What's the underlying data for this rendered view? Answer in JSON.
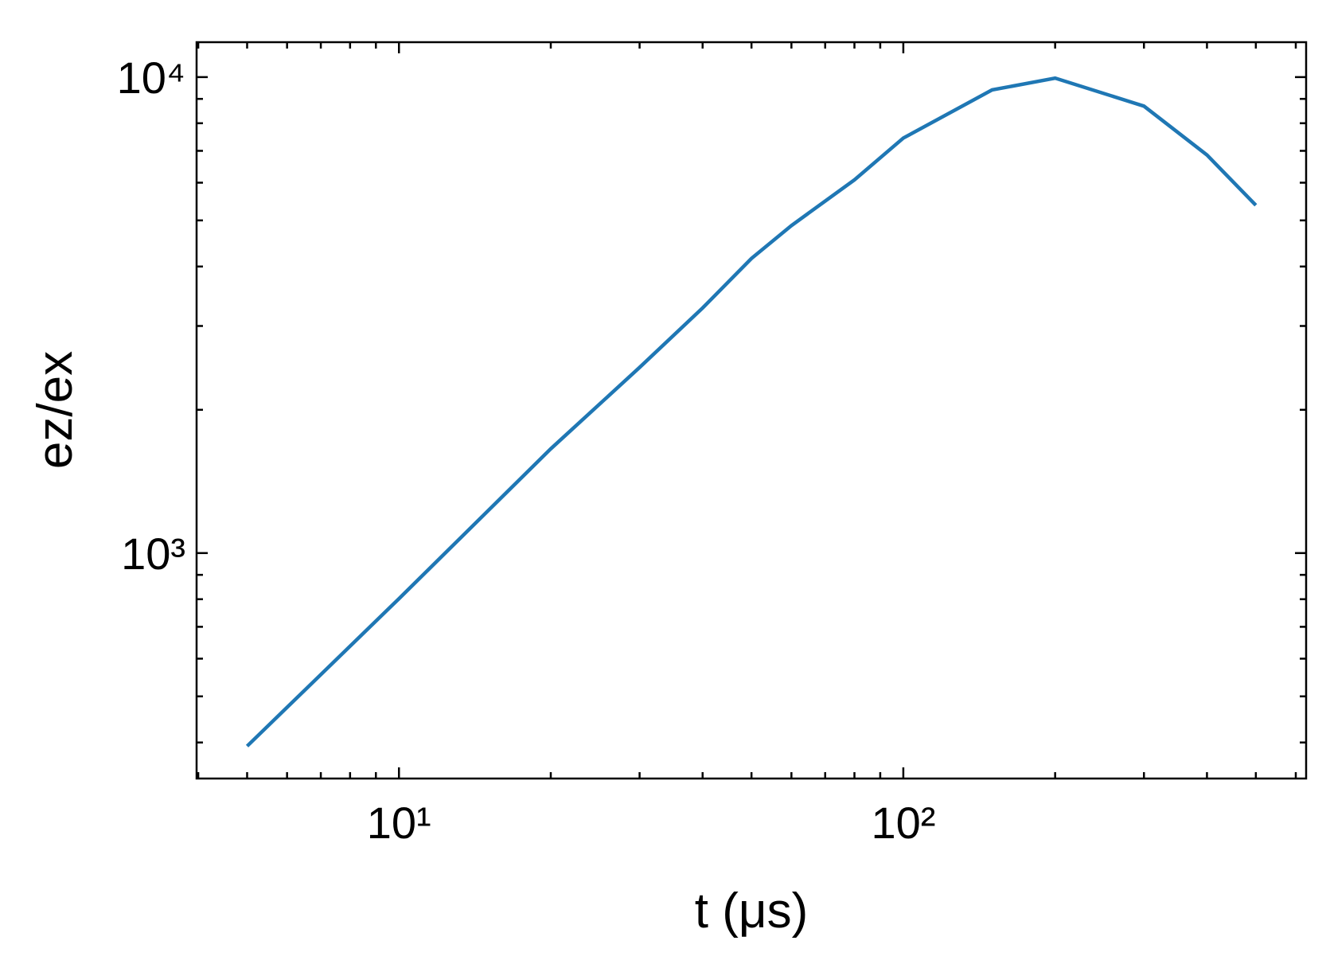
{
  "chart_data": {
    "type": "line",
    "xlabel": "t (μs)",
    "ylabel": "ez/ex",
    "x": [
      5,
      10,
      20,
      30,
      40,
      50,
      60,
      80,
      100,
      150,
      200,
      300,
      400,
      500
    ],
    "series": [
      {
        "name": "ez/ex",
        "color": "#1f77b4",
        "values": [
          393,
          802,
          1656,
          2455,
          3273,
          4160,
          4876,
          6083,
          7446,
          9400,
          9950,
          8690,
          6860,
          5380
        ]
      }
    ],
    "xscale": "log",
    "yscale": "log",
    "xlim": [
      3.97,
      629
    ],
    "ylim": [
      336,
      11840
    ],
    "xticks": [
      {
        "value": 10,
        "label": "10¹"
      },
      {
        "value": 100,
        "label": "10²"
      }
    ],
    "yticks": [
      {
        "value": 1000,
        "label": "10³"
      },
      {
        "value": 10000,
        "label": "10⁴"
      }
    ],
    "xminorticks": [
      4,
      5,
      6,
      7,
      8,
      9,
      20,
      30,
      40,
      50,
      60,
      70,
      80,
      90,
      200,
      300,
      400,
      500,
      600
    ],
    "yminorticks": [
      400,
      500,
      600,
      700,
      800,
      900,
      2000,
      3000,
      4000,
      5000,
      6000,
      7000,
      8000,
      9000
    ],
    "grid": false
  }
}
